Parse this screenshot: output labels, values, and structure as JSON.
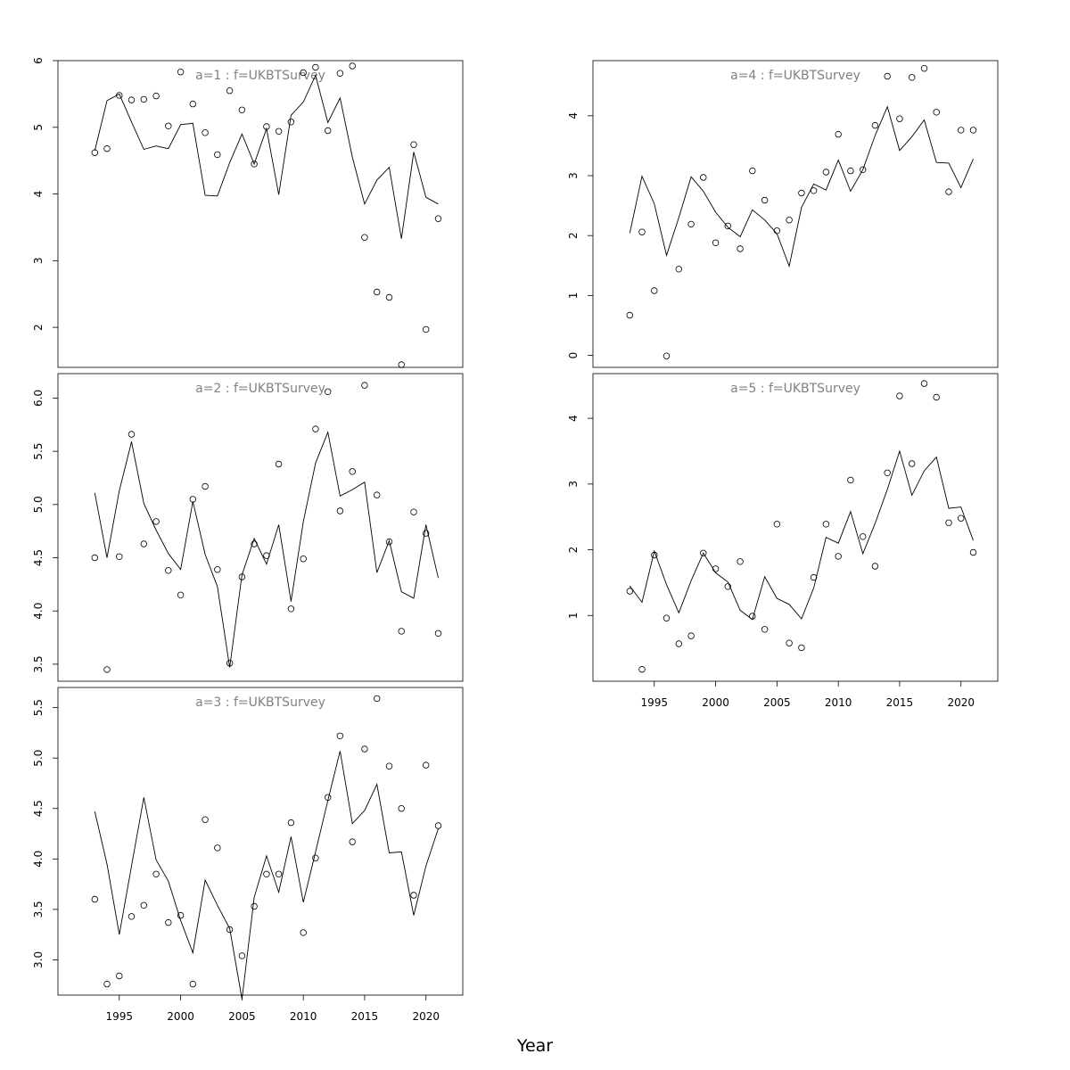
{
  "figure": {
    "xlabel": "Year"
  },
  "chart_data": [
    {
      "type": "line",
      "title": "a=1  :  f=UKBTSurvey",
      "x": [
        1993,
        1994,
        1995,
        1996,
        1997,
        1998,
        1999,
        2000,
        2001,
        2002,
        2003,
        2004,
        2005,
        2006,
        2007,
        2008,
        2009,
        2010,
        2011,
        2012,
        2013,
        2014,
        2015,
        2016,
        2017,
        2018,
        2019,
        2020,
        2021
      ],
      "series": [
        {
          "kind": "line",
          "values": [
            4.65,
            5.4,
            5.5,
            5.08,
            4.67,
            4.72,
            4.68,
            5.04,
            5.06,
            3.98,
            3.97,
            4.47,
            4.9,
            4.45,
            4.98,
            3.99,
            5.18,
            5.38,
            5.78,
            5.07,
            5.44,
            4.55,
            3.85,
            4.21,
            4.4,
            3.33,
            4.63,
            3.95,
            3.85
          ]
        },
        {
          "kind": "points",
          "values": [
            4.62,
            4.68,
            5.48,
            5.41,
            5.42,
            5.47,
            5.02,
            5.83,
            5.35,
            4.92,
            4.59,
            5.55,
            5.26,
            4.45,
            5.01,
            4.94,
            5.08,
            5.82,
            5.9,
            4.95,
            5.81,
            5.92,
            3.35,
            2.53,
            2.45,
            1.44,
            4.74,
            1.97,
            3.63
          ]
        }
      ],
      "ylim": [
        1.4,
        6.0
      ],
      "yticks": [
        2,
        3,
        4,
        5,
        6
      ],
      "xlim": [
        1990,
        2023
      ],
      "xticks_shown": false
    },
    {
      "type": "line",
      "title": "a=2  :  f=UKBTSurvey",
      "x": [
        1993,
        1994,
        1995,
        1996,
        1997,
        1998,
        1999,
        2000,
        2001,
        2002,
        2003,
        2004,
        2005,
        2006,
        2007,
        2008,
        2009,
        2010,
        2011,
        2012,
        2013,
        2014,
        2015,
        2016,
        2017,
        2018,
        2019,
        2020,
        2021
      ],
      "series": [
        {
          "kind": "line",
          "values": [
            5.11,
            4.5,
            5.13,
            5.59,
            5.01,
            4.76,
            4.54,
            4.39,
            5.03,
            4.53,
            4.23,
            3.47,
            4.34,
            4.68,
            4.44,
            4.81,
            4.09,
            4.84,
            5.39,
            5.68,
            5.08,
            5.14,
            5.21,
            4.36,
            4.66,
            4.18,
            4.12,
            4.81,
            4.31
          ]
        },
        {
          "kind": "points",
          "values": [
            4.5,
            3.45,
            4.51,
            5.66,
            4.63,
            4.84,
            4.38,
            4.15,
            5.05,
            5.17,
            4.39,
            3.51,
            4.32,
            4.63,
            4.52,
            5.38,
            4.02,
            4.49,
            5.71,
            6.06,
            4.94,
            5.31,
            6.12,
            5.09,
            4.65,
            3.81,
            4.93,
            4.73,
            3.79
          ]
        }
      ],
      "ylim": [
        3.34,
        6.23
      ],
      "yticks": [
        3.5,
        4.0,
        4.5,
        5.0,
        5.5,
        6.0
      ],
      "xlim": [
        1990,
        2023
      ],
      "xticks_shown": false
    },
    {
      "type": "line",
      "title": "a=3  :  f=UKBTSurvey",
      "x": [
        1993,
        1994,
        1995,
        1996,
        1997,
        1998,
        1999,
        2000,
        2001,
        2002,
        2003,
        2004,
        2005,
        2006,
        2007,
        2008,
        2009,
        2010,
        2011,
        2012,
        2013,
        2014,
        2015,
        2016,
        2017,
        2018,
        2019,
        2020,
        2021
      ],
      "series": [
        {
          "kind": "line",
          "values": [
            4.47,
            3.95,
            3.25,
            3.93,
            4.61,
            3.99,
            3.78,
            3.39,
            3.07,
            3.79,
            3.54,
            3.31,
            2.61,
            3.62,
            4.03,
            3.67,
            4.22,
            3.57,
            4.07,
            4.58,
            5.07,
            4.35,
            4.48,
            4.74,
            4.06,
            4.07,
            3.44,
            3.93,
            4.3
          ]
        },
        {
          "kind": "points",
          "values": [
            3.6,
            2.76,
            2.84,
            3.43,
            3.54,
            3.85,
            3.37,
            3.44,
            2.76,
            4.39,
            4.11,
            3.3,
            3.04,
            3.53,
            3.85,
            3.85,
            4.36,
            3.27,
            4.01,
            4.61,
            5.22,
            4.17,
            5.09,
            5.59,
            4.92,
            4.5,
            3.64,
            4.93,
            4.33
          ]
        }
      ],
      "ylim": [
        2.65,
        5.7
      ],
      "yticks": [
        3.0,
        3.5,
        4.0,
        4.5,
        5.0,
        5.5
      ],
      "xlim": [
        1990,
        2023
      ],
      "xticks": [
        1995,
        2000,
        2005,
        2010,
        2015,
        2020
      ],
      "xticks_shown": true
    },
    {
      "type": "line",
      "title": "a=4  :  f=UKBTSurvey",
      "x": [
        1993,
        1994,
        1995,
        1996,
        1997,
        1998,
        1999,
        2000,
        2001,
        2002,
        2003,
        2004,
        2005,
        2006,
        2007,
        2008,
        2009,
        2010,
        2011,
        2012,
        2013,
        2014,
        2015,
        2016,
        2017,
        2018,
        2019,
        2020,
        2021
      ],
      "series": [
        {
          "kind": "line",
          "values": [
            2.04,
            2.99,
            2.53,
            1.67,
            2.3,
            2.98,
            2.74,
            2.39,
            2.14,
            1.98,
            2.43,
            2.26,
            2.03,
            1.49,
            2.47,
            2.86,
            2.76,
            3.26,
            2.74,
            3.1,
            3.67,
            4.15,
            3.42,
            3.65,
            3.93,
            3.22,
            3.21,
            2.8,
            3.28
          ]
        },
        {
          "kind": "points",
          "values": [
            0.67,
            2.06,
            1.08,
            -0.01,
            1.44,
            2.19,
            2.97,
            1.88,
            2.16,
            1.78,
            3.08,
            2.59,
            2.08,
            2.26,
            2.71,
            2.75,
            3.06,
            3.69,
            3.08,
            3.1,
            3.84,
            4.66,
            3.95,
            4.64,
            4.79,
            4.06,
            2.73,
            3.76,
            3.76
          ]
        }
      ],
      "ylim": [
        -0.2,
        4.92
      ],
      "yticks": [
        0,
        1,
        2,
        3,
        4
      ],
      "xlim": [
        1990,
        2023
      ],
      "xticks_shown": false
    },
    {
      "type": "line",
      "title": "a=5  :  f=UKBTSurvey",
      "x": [
        1993,
        1994,
        1995,
        1996,
        1997,
        1998,
        1999,
        2000,
        2001,
        2002,
        2003,
        2004,
        2005,
        2006,
        2007,
        2008,
        2009,
        2010,
        2011,
        2012,
        2013,
        2014,
        2015,
        2016,
        2017,
        2018,
        2019,
        2020,
        2021
      ],
      "series": [
        {
          "kind": "line",
          "values": [
            1.45,
            1.2,
            1.98,
            1.47,
            1.04,
            1.53,
            1.95,
            1.65,
            1.51,
            1.08,
            0.94,
            1.59,
            1.26,
            1.17,
            0.95,
            1.42,
            2.19,
            2.1,
            2.58,
            1.94,
            2.4,
            2.92,
            3.5,
            2.83,
            3.2,
            3.41,
            2.63,
            2.65,
            2.14
          ]
        },
        {
          "kind": "points",
          "values": [
            1.37,
            0.18,
            1.92,
            0.96,
            0.57,
            0.69,
            1.95,
            1.71,
            1.44,
            1.82,
            0.99,
            0.79,
            2.39,
            0.58,
            0.51,
            1.58,
            2.39,
            1.9,
            3.06,
            2.2,
            1.75,
            3.17,
            4.34,
            3.31,
            4.53,
            4.32,
            2.41,
            2.48,
            1.96
          ]
        }
      ],
      "ylim": [
        0.0,
        4.68
      ],
      "yticks": [
        1,
        2,
        3,
        4
      ],
      "xlim": [
        1990,
        2023
      ],
      "xticks": [
        1995,
        2000,
        2005,
        2010,
        2015,
        2020
      ],
      "xticks_shown": true
    }
  ]
}
